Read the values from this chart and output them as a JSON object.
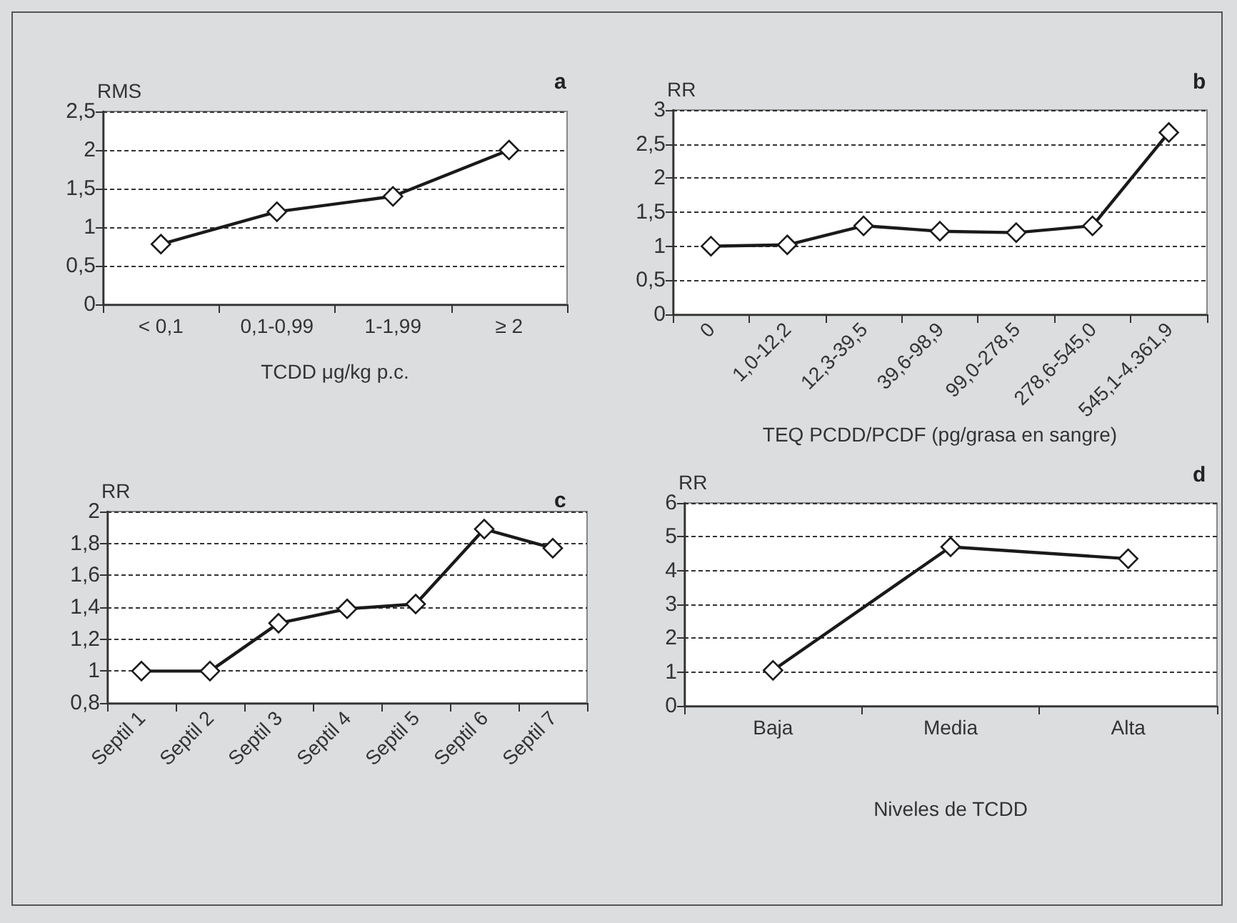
{
  "chart_data": [
    {
      "type": "line",
      "title": "a",
      "ylabel": "RMS",
      "xlabel": "TCDD μg/kg p.c.",
      "categories": [
        "< 0,1",
        "0,1-0,99",
        "1-1,99",
        "≥ 2"
      ],
      "series": [
        {
          "color": "#1a1a1a",
          "values": [
            0.78,
            1.2,
            1.4,
            2.0
          ]
        }
      ],
      "ylim": [
        0,
        2.5
      ],
      "yticks": [
        0,
        {
          "value": 0.5,
          "label": "0,5"
        },
        1,
        {
          "value": 1.5,
          "label": "1,5"
        },
        2,
        {
          "value": 2.5,
          "label": "2,5"
        }
      ],
      "grid": "y",
      "marker": "diamond",
      "line_style": "solid"
    },
    {
      "type": "line",
      "title": "b",
      "ylabel": "RR",
      "xlabel": "TEQ PCDD/PCDF (pg/grasa en sangre)",
      "categories": [
        "0",
        "1,0-12,2",
        "12,3-39,5",
        "39,6-98,9",
        "99,0-278,5",
        "278,6-545,0",
        "545,1-4.361,9"
      ],
      "series": [
        {
          "color": "#1a1a1a",
          "values": [
            1.0,
            1.02,
            1.3,
            1.22,
            1.2,
            1.3,
            2.67
          ]
        }
      ],
      "ylim": [
        0,
        3
      ],
      "yticks": [
        0,
        {
          "value": 0.5,
          "label": "0,5"
        },
        1,
        {
          "value": 1.5,
          "label": "1,5"
        },
        2,
        {
          "value": 2.5,
          "label": "2,5"
        },
        3
      ],
      "grid": "y",
      "marker": "diamond",
      "line_style": "solid"
    },
    {
      "type": "line",
      "title": "c",
      "ylabel": "RR",
      "categories": [
        "Septil 1",
        "Septil 2",
        "Septil 3",
        "Septil 4",
        "Septil 5",
        "Septil 6",
        "Septil 7"
      ],
      "series": [
        {
          "color": "#1a1a1a",
          "values": [
            1.0,
            1.0,
            1.3,
            1.39,
            1.42,
            1.89,
            1.77
          ]
        }
      ],
      "ylim": [
        0.8,
        2
      ],
      "yticks": [
        {
          "value": 0.8,
          "label": "0,8"
        },
        1,
        {
          "value": 1.2,
          "label": "1,2"
        },
        {
          "value": 1.4,
          "label": "1,4"
        },
        {
          "value": 1.6,
          "label": "1,6"
        },
        {
          "value": 1.8,
          "label": "1,8"
        },
        2
      ],
      "grid": "y",
      "marker": "diamond",
      "line_style": "solid"
    },
    {
      "type": "line",
      "title": "d",
      "ylabel": "RR",
      "xlabel": "Niveles de TCDD",
      "categories": [
        "Baja",
        "Media",
        "Alta"
      ],
      "series": [
        {
          "color": "#1a1a1a",
          "values": [
            1.05,
            4.7,
            4.35
          ]
        }
      ],
      "ylim": [
        0,
        6
      ],
      "yticks": [
        0,
        1,
        2,
        3,
        4,
        5,
        6
      ],
      "grid": "y",
      "marker": "diamond",
      "line_style": "solid"
    }
  ]
}
